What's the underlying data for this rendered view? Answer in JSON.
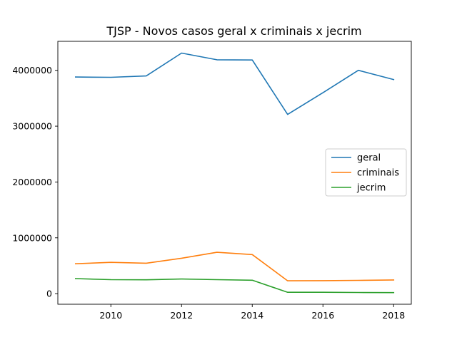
{
  "chart_data": {
    "type": "line",
    "title": "TJSP - Novos casos geral x criminais x jecrim",
    "xlabel": "",
    "ylabel": "",
    "x": [
      2009,
      2010,
      2011,
      2012,
      2013,
      2014,
      2015,
      2016,
      2017,
      2018
    ],
    "xlim": [
      2008.5,
      2018.5
    ],
    "ylim": [
      -190000,
      4520000
    ],
    "x_ticks": [
      2010,
      2012,
      2014,
      2016,
      2018
    ],
    "y_ticks": [
      0,
      1000000,
      2000000,
      3000000,
      4000000
    ],
    "grid": false,
    "legend_position": "center-right",
    "series": [
      {
        "name": "geral",
        "color": "#1f77b4",
        "values": [
          3880000,
          3875000,
          3900000,
          4310000,
          4190000,
          4185000,
          3210000,
          3600000,
          4000000,
          3835000
        ]
      },
      {
        "name": "criminais",
        "color": "#ff7f0e",
        "values": [
          535000,
          560000,
          545000,
          635000,
          740000,
          700000,
          230000,
          233000,
          238000,
          245000
        ]
      },
      {
        "name": "jecrim",
        "color": "#2ca02c",
        "values": [
          270000,
          250000,
          248000,
          262000,
          250000,
          240000,
          25000,
          25000,
          20000,
          18000
        ]
      }
    ]
  }
}
